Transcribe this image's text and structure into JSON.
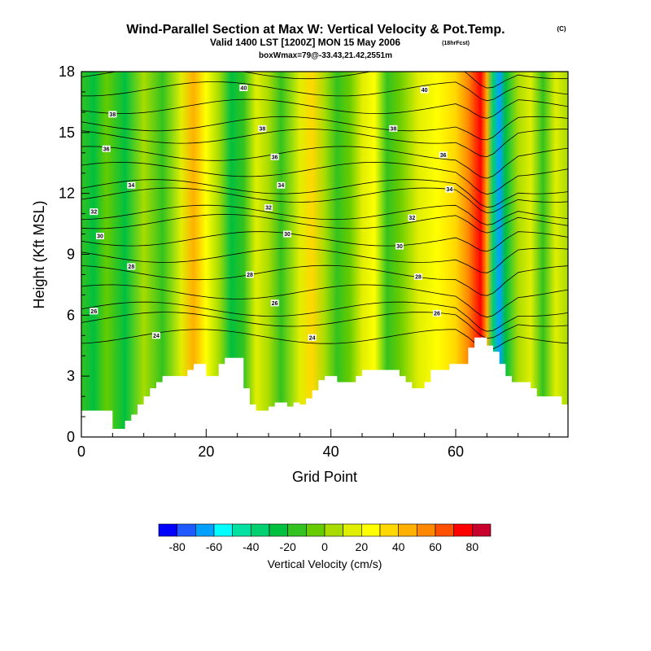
{
  "title_main": "Wind-Parallel Section at Max W: Vertical Velocity & Pot.Temp.",
  "title_mark": "(C)",
  "subtitle_valid": "Valid 1400 LST [1200Z] MON 15 May 2006",
  "subtitle_fcst": "(18hrFcst)",
  "box_note": "boxWmax=79@-33.43,21.42,2551m",
  "colors": {
    "background": "#ffffff",
    "terrain": "#ffffff",
    "contour": "#000000"
  },
  "chart_data": {
    "type": "heatmap",
    "xlabel": "Grid Point",
    "ylabel": "Height (Kft MSL)",
    "xlim": [
      0,
      78
    ],
    "ylim": [
      0,
      18
    ],
    "x_ticks": [
      0,
      20,
      40,
      60
    ],
    "y_ticks": [
      0,
      3,
      6,
      9,
      12,
      15,
      18
    ],
    "colorbar": {
      "label": "Vertical Velocity (cm/s)",
      "tick_labels": [
        "-80",
        "-60",
        "-40",
        "-20",
        "0",
        "20",
        "40",
        "60",
        "80"
      ],
      "levels": [
        -90,
        -80,
        -70,
        -60,
        -50,
        -40,
        -30,
        -20,
        -10,
        0,
        10,
        20,
        30,
        40,
        50,
        60,
        70,
        80,
        90
      ],
      "colors": [
        "#0000ff",
        "#1e5aff",
        "#00a0ff",
        "#00ffff",
        "#00e0a0",
        "#00d070",
        "#00c040",
        "#33c21f",
        "#66cc00",
        "#a8dc00",
        "#e0ee00",
        "#ffff00",
        "#ffd800",
        "#ffb000",
        "#ff8800",
        "#ff5000",
        "#ff0000",
        "#c8002c"
      ]
    },
    "terrain_kft": [
      [
        0,
        1.3
      ],
      [
        1,
        1.3
      ],
      [
        2,
        1.3
      ],
      [
        3,
        1.3
      ],
      [
        4,
        1.3
      ],
      [
        5,
        0.4
      ],
      [
        6,
        0.4
      ],
      [
        7,
        0.8
      ],
      [
        8,
        1.1
      ],
      [
        9,
        1.6
      ],
      [
        10,
        2.0
      ],
      [
        11,
        2.4
      ],
      [
        12,
        2.7
      ],
      [
        13,
        3.0
      ],
      [
        14,
        3.0
      ],
      [
        15,
        3.0
      ],
      [
        16,
        3.0
      ],
      [
        17,
        3.3
      ],
      [
        18,
        3.6
      ],
      [
        19,
        3.6
      ],
      [
        20,
        3.0
      ],
      [
        21,
        3.0
      ],
      [
        22,
        3.6
      ],
      [
        23,
        3.9
      ],
      [
        24,
        3.9
      ],
      [
        25,
        3.9
      ],
      [
        26,
        2.4
      ],
      [
        27,
        1.6
      ],
      [
        28,
        1.3
      ],
      [
        29,
        1.3
      ],
      [
        30,
        1.5
      ],
      [
        31,
        1.7
      ],
      [
        32,
        1.7
      ],
      [
        33,
        1.5
      ],
      [
        34,
        1.7
      ],
      [
        35,
        1.6
      ],
      [
        36,
        1.9
      ],
      [
        37,
        2.3
      ],
      [
        38,
        2.8
      ],
      [
        39,
        3.0
      ],
      [
        40,
        3.0
      ],
      [
        41,
        2.7
      ],
      [
        42,
        2.7
      ],
      [
        43,
        2.7
      ],
      [
        44,
        3.0
      ],
      [
        45,
        3.3
      ],
      [
        46,
        3.3
      ],
      [
        47,
        3.3
      ],
      [
        48,
        3.3
      ],
      [
        49,
        3.3
      ],
      [
        50,
        3.3
      ],
      [
        51,
        3.0
      ],
      [
        52,
        2.7
      ],
      [
        53,
        2.4
      ],
      [
        54,
        2.4
      ],
      [
        55,
        2.7
      ],
      [
        56,
        3.3
      ],
      [
        57,
        3.3
      ],
      [
        58,
        3.3
      ],
      [
        59,
        3.6
      ],
      [
        60,
        3.6
      ],
      [
        61,
        3.6
      ],
      [
        62,
        4.4
      ],
      [
        63,
        4.9
      ],
      [
        64,
        4.9
      ],
      [
        65,
        4.5
      ],
      [
        66,
        4.2
      ],
      [
        67,
        3.6
      ],
      [
        68,
        3.0
      ],
      [
        69,
        2.7
      ],
      [
        70,
        2.7
      ],
      [
        71,
        2.7
      ],
      [
        72,
        2.4
      ],
      [
        73,
        2.0
      ],
      [
        74,
        2.0
      ],
      [
        75,
        2.0
      ],
      [
        76,
        2.0
      ],
      [
        77,
        1.6
      ],
      [
        78,
        1.6
      ]
    ],
    "w_bands": [
      {
        "x": 0,
        "w": -15
      },
      {
        "x": 2,
        "w": -30
      },
      {
        "x": 4,
        "w": -10
      },
      {
        "x": 7,
        "w": -25
      },
      {
        "x": 10,
        "w": 5
      },
      {
        "x": 13,
        "w": -20
      },
      {
        "x": 16,
        "w": 15
      },
      {
        "x": 18,
        "w": 45
      },
      {
        "x": 20,
        "w": 25
      },
      {
        "x": 22,
        "w": 5
      },
      {
        "x": 24,
        "w": -30
      },
      {
        "x": 26,
        "w": -15
      },
      {
        "x": 28,
        "w": 15
      },
      {
        "x": 30,
        "w": 5
      },
      {
        "x": 32,
        "w": -15
      },
      {
        "x": 35,
        "w": 15
      },
      {
        "x": 37,
        "w": 30
      },
      {
        "x": 39,
        "w": 5
      },
      {
        "x": 41,
        "w": -15
      },
      {
        "x": 43,
        "w": -5
      },
      {
        "x": 45,
        "w": 15
      },
      {
        "x": 47,
        "w": 20
      },
      {
        "x": 49,
        "w": -20
      },
      {
        "x": 51,
        "w": -10
      },
      {
        "x": 54,
        "w": 10
      },
      {
        "x": 57,
        "w": 20
      },
      {
        "x": 60,
        "w": 30
      },
      {
        "x": 62,
        "w": 50
      },
      {
        "x": 64,
        "w": 70
      },
      {
        "x": 65,
        "w": 40
      },
      {
        "x": 66,
        "w": -40
      },
      {
        "x": 67,
        "w": -70
      },
      {
        "x": 68,
        "w": -30
      },
      {
        "x": 70,
        "w": 5
      },
      {
        "x": 72,
        "w": 15
      },
      {
        "x": 74,
        "w": -15
      },
      {
        "x": 76,
        "w": 10
      },
      {
        "x": 78,
        "w": 5
      }
    ],
    "theta_contour_labels": [
      {
        "text": "40",
        "x": 26,
        "y": 17.2
      },
      {
        "text": "40",
        "x": 55,
        "y": 17.1
      },
      {
        "text": "38",
        "x": 5,
        "y": 15.9
      },
      {
        "text": "38",
        "x": 29,
        "y": 15.2
      },
      {
        "text": "38",
        "x": 50,
        "y": 15.2
      },
      {
        "text": "36",
        "x": 4,
        "y": 14.2
      },
      {
        "text": "36",
        "x": 31,
        "y": 13.8
      },
      {
        "text": "36",
        "x": 58,
        "y": 13.9
      },
      {
        "text": "34",
        "x": 8,
        "y": 12.4
      },
      {
        "text": "34",
        "x": 32,
        "y": 12.4
      },
      {
        "text": "34",
        "x": 59,
        "y": 12.2
      },
      {
        "text": "32",
        "x": 2,
        "y": 11.1
      },
      {
        "text": "32",
        "x": 30,
        "y": 11.3
      },
      {
        "text": "32",
        "x": 53,
        "y": 10.8
      },
      {
        "text": "30",
        "x": 3,
        "y": 9.9
      },
      {
        "text": "30",
        "x": 33,
        "y": 10.0
      },
      {
        "text": "30",
        "x": 51,
        "y": 9.4
      },
      {
        "text": "28",
        "x": 8,
        "y": 8.4
      },
      {
        "text": "28",
        "x": 27,
        "y": 8.0
      },
      {
        "text": "28",
        "x": 54,
        "y": 7.9
      },
      {
        "text": "26",
        "x": 2,
        "y": 6.2
      },
      {
        "text": "26",
        "x": 31,
        "y": 6.6
      },
      {
        "text": "26",
        "x": 57,
        "y": 6.1
      },
      {
        "text": "24",
        "x": 12,
        "y": 5.0
      },
      {
        "text": "24",
        "x": 37,
        "y": 4.9
      }
    ]
  }
}
